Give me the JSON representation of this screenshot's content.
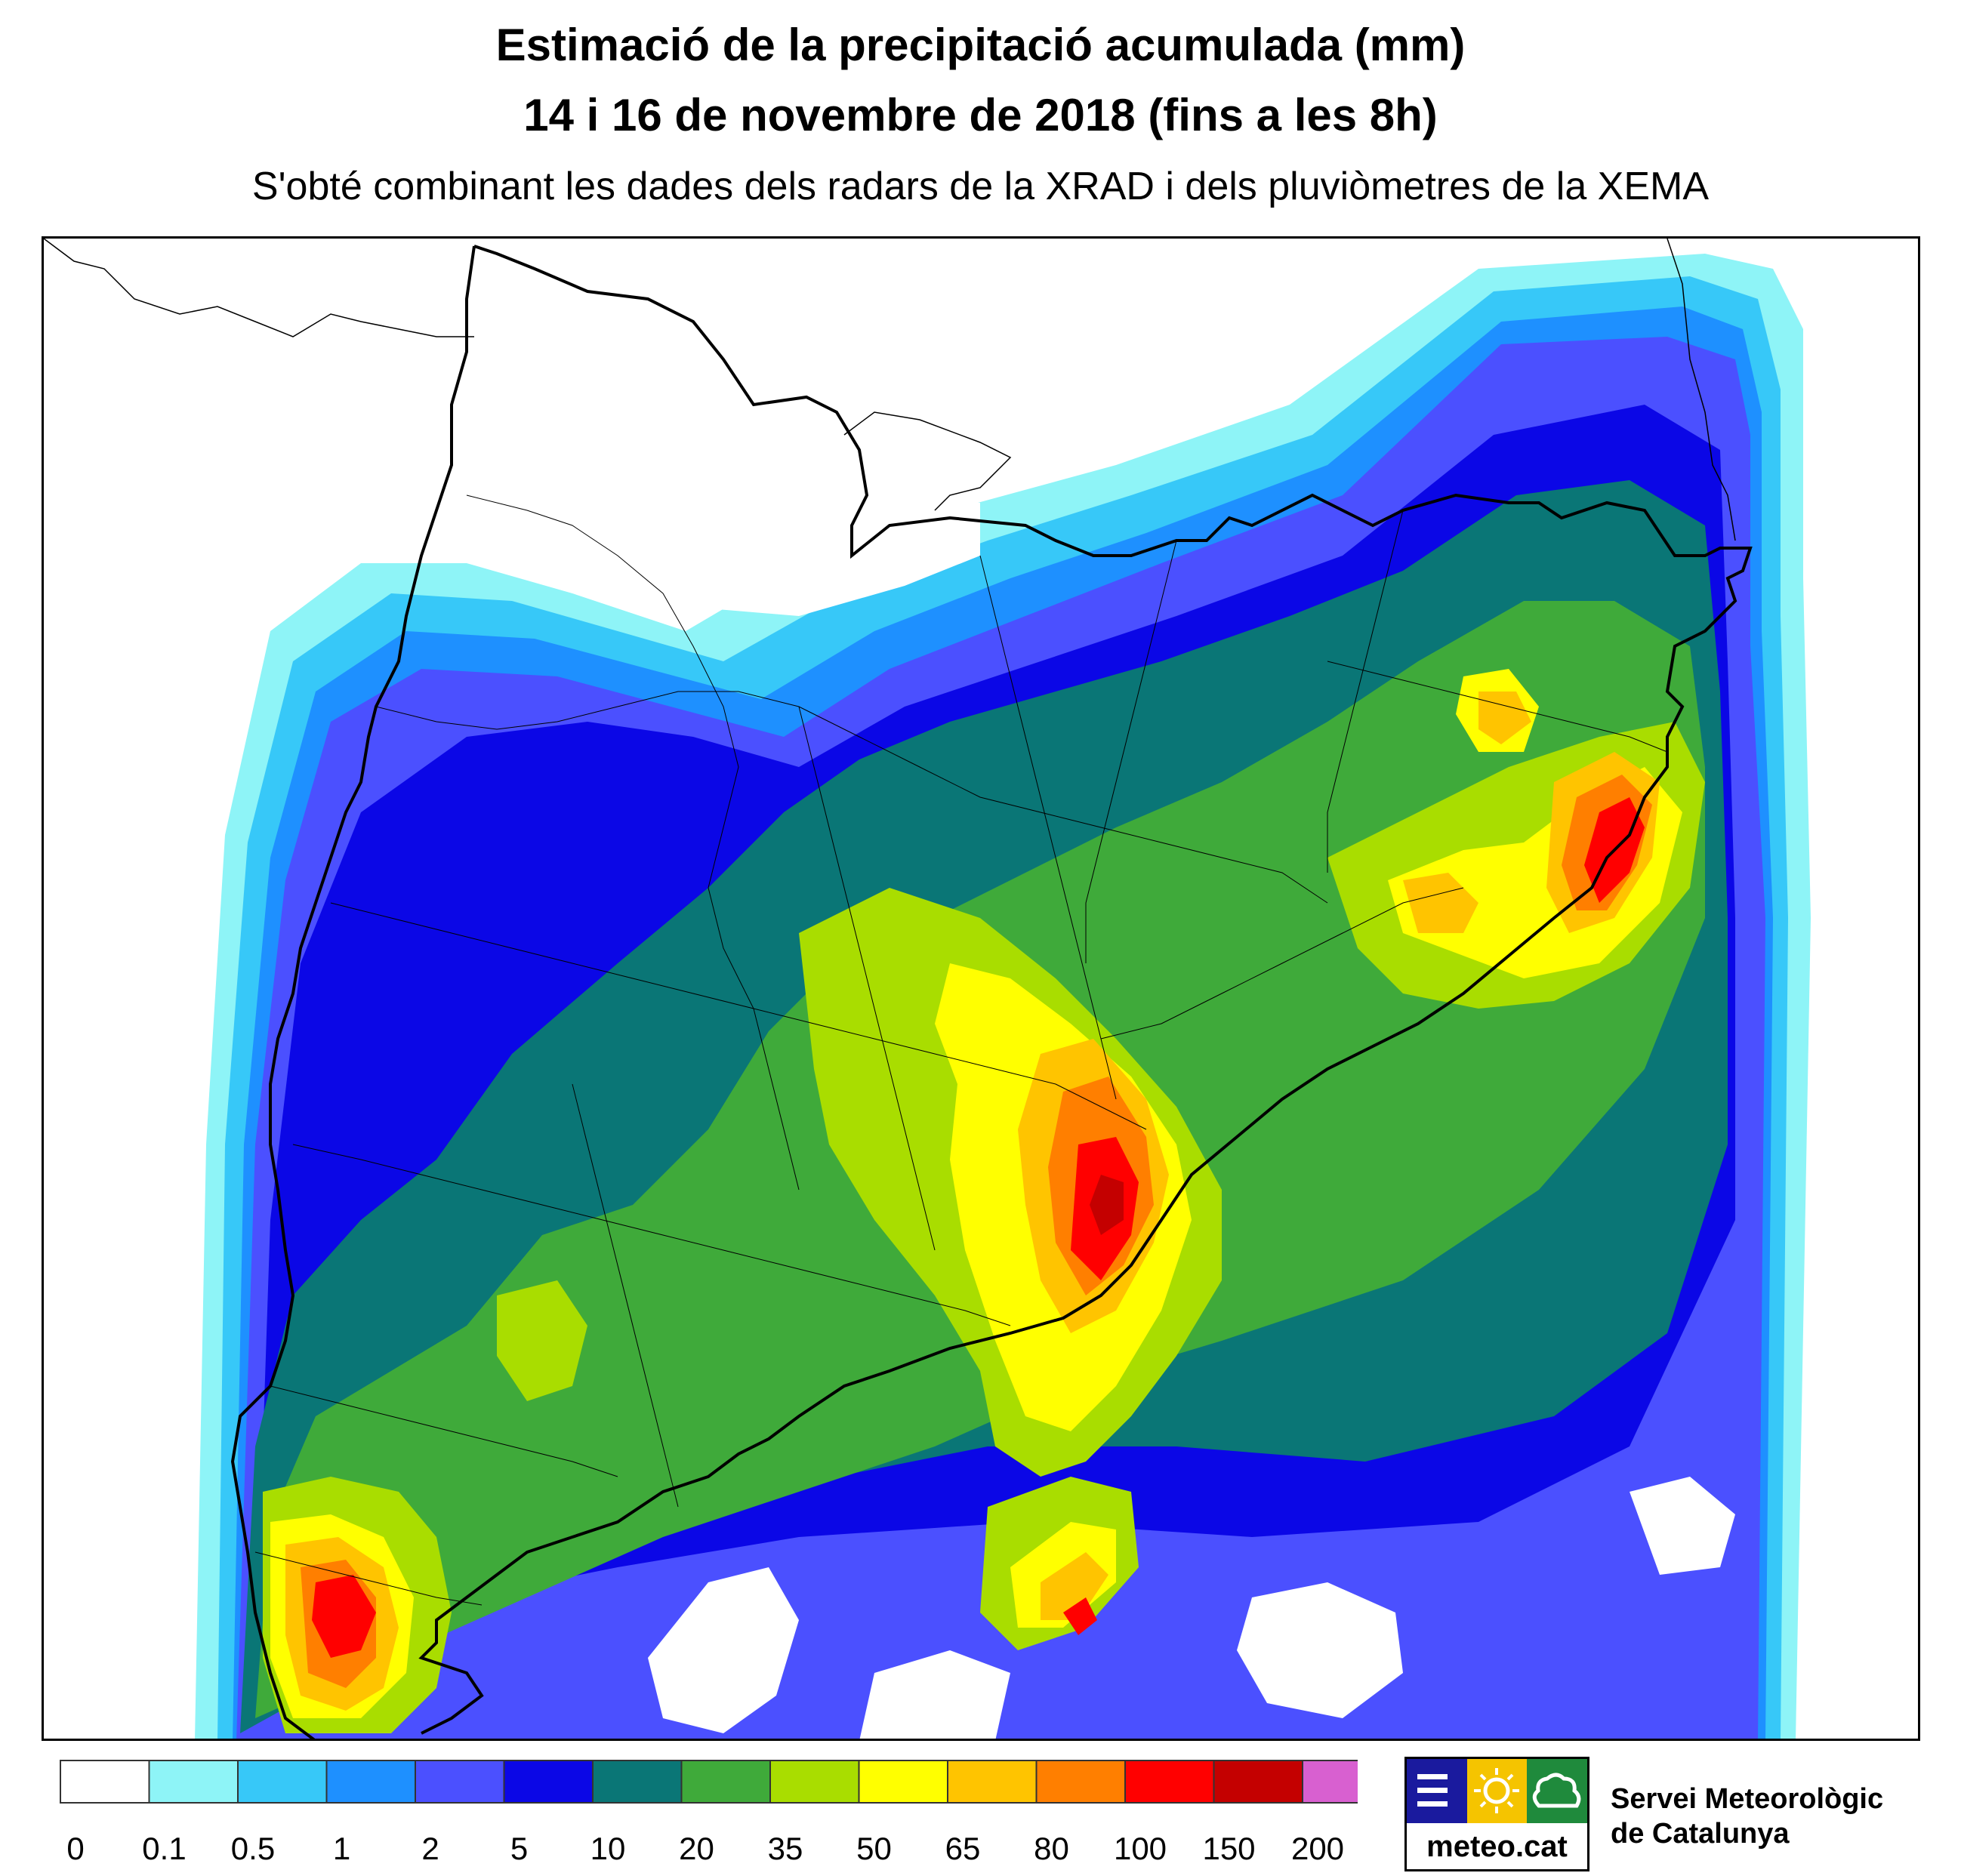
{
  "header": {
    "title_line1": "Estimació de la precipitació acumulada (mm)",
    "title_line2": "14 i 16 de novembre de 2018 (fins a les 8h)",
    "subtitle": "S'obté combinant les dades dels radars de la XRAD i dels pluviòmetres de la XEMA"
  },
  "legend": {
    "unit": "mm",
    "labels": [
      "0",
      "0.1",
      "0.5",
      "1",
      "2",
      "5",
      "10",
      "20",
      "35",
      "50",
      "65",
      "80",
      "100",
      "150",
      "200"
    ],
    "colors": [
      "#ffffff",
      "#8ef4f7",
      "#37c8f8",
      "#1e90ff",
      "#4b50ff",
      "#0b07e6",
      "#0a7676",
      "#3faa3a",
      "#a9dd00",
      "#ffff00",
      "#ffc400",
      "#ff7f00",
      "#ff0000",
      "#c40000",
      "#d860d0"
    ]
  },
  "logo": {
    "text": "meteo.cat",
    "tile_colors": [
      "#1a1a9e",
      "#f5c400",
      "#1f8a3c"
    ],
    "icons": [
      "menu-lines-icon",
      "sun-icon",
      "cloud-icon"
    ]
  },
  "organization": {
    "line1": "Servei Meteorològic",
    "line2": "de Catalunya"
  }
}
